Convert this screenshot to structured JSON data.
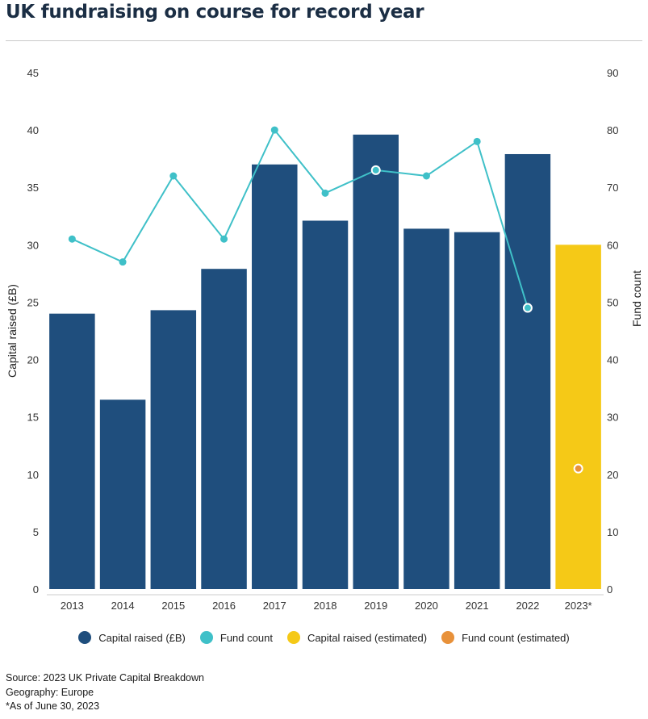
{
  "title": "UK fundraising on course for record year",
  "colors": {
    "capital": "#1f4e7d",
    "fund_count": "#3fc0c8",
    "capital_estimated": "#f5c917",
    "fund_count_estimated": "#e8913a"
  },
  "legend": [
    {
      "label": "Capital raised (£B)",
      "color": "#1f4e7d"
    },
    {
      "label": "Fund count",
      "color": "#3fc0c8"
    },
    {
      "label": "Capital raised (estimated)",
      "color": "#f5c917"
    },
    {
      "label": "Fund count (estimated)",
      "color": "#e8913a"
    }
  ],
  "footer": {
    "source": "Source: 2023 UK Private Capital Breakdown",
    "geography": "Geography: Europe",
    "asof": "*As of June 30, 2023"
  },
  "chart_data": {
    "type": "bar",
    "categories": [
      "2013",
      "2014",
      "2015",
      "2016",
      "2017",
      "2018",
      "2019",
      "2020",
      "2021",
      "2022",
      "2023*"
    ],
    "series": [
      {
        "name": "Capital raised (£B)",
        "type": "bar",
        "axis": "left",
        "values": [
          24.0,
          16.5,
          24.3,
          27.9,
          37.0,
          32.1,
          39.6,
          31.4,
          31.1,
          37.9,
          null
        ]
      },
      {
        "name": "Capital raised (estimated)",
        "type": "bar",
        "axis": "left",
        "values": [
          null,
          null,
          null,
          null,
          null,
          null,
          null,
          null,
          null,
          null,
          30.0
        ]
      },
      {
        "name": "Fund count",
        "type": "line",
        "axis": "right",
        "values": [
          61,
          57,
          72,
          61,
          80,
          69,
          73,
          72,
          78,
          49,
          null
        ]
      },
      {
        "name": "Fund count (estimated)",
        "type": "scatter",
        "axis": "right",
        "values": [
          null,
          null,
          null,
          null,
          null,
          null,
          null,
          null,
          null,
          null,
          21
        ]
      }
    ],
    "ylabel": "Capital raised (£B)",
    "y2label": "Fund count",
    "ylim": [
      0,
      45
    ],
    "y2lim": [
      0,
      90
    ],
    "yticks": [
      "0",
      "5",
      "10",
      "15",
      "20",
      "25",
      "30",
      "35",
      "40",
      "45"
    ],
    "y2ticks": [
      "0",
      "10",
      "20",
      "30",
      "40",
      "50",
      "60",
      "70",
      "80",
      "90"
    ],
    "grid": false,
    "legend_position": "bottom"
  }
}
